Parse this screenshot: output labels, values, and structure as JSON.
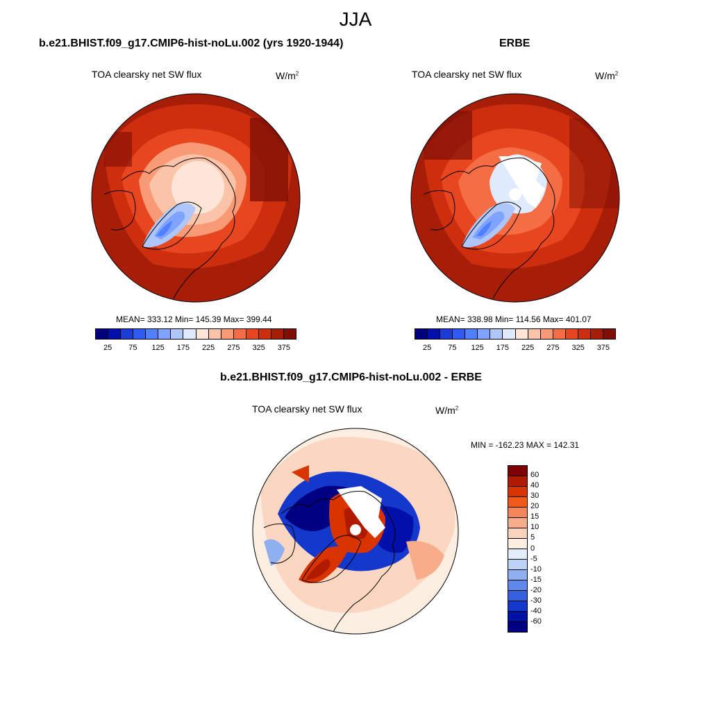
{
  "title": "JJA",
  "chart_data": [
    {
      "type": "heatmap",
      "projection": "north polar stereographic",
      "title": "b.e21.BHIST.f09_g17.CMIP6-hist-noLu.002 (yrs 1920-1944)",
      "variable": "TOA clearsky net SW flux",
      "units_base": "W/m",
      "units_exp": "2",
      "stats": {
        "mean": "333.12",
        "min": "145.39",
        "max": "399.44"
      },
      "stats_text": "MEAN= 333.12  Min= 145.39  Max= 399.44",
      "colorbar_ticks": [
        "25",
        "75",
        "125",
        "175",
        "225",
        "275",
        "325",
        "375"
      ],
      "colorbar_colors": [
        "#00007f",
        "#0010a8",
        "#1a3bd6",
        "#2f5bf0",
        "#4f80ff",
        "#7ea4ff",
        "#aec6fa",
        "#dfeafc",
        "#fde6d8",
        "#fbc4a8",
        "#f99a76",
        "#f56d44",
        "#e8461f",
        "#cc2e0e",
        "#a61d08",
        "#7f0f05"
      ]
    },
    {
      "type": "heatmap",
      "projection": "north polar stereographic",
      "title": "ERBE",
      "variable": "TOA clearsky net SW flux",
      "units_base": "W/m",
      "units_exp": "2",
      "stats": {
        "mean": "338.98",
        "min": "114.56",
        "max": "401.07"
      },
      "stats_text": "MEAN= 338.98  Min= 114.56  Max= 401.07",
      "colorbar_ticks": [
        "25",
        "75",
        "125",
        "175",
        "225",
        "275",
        "325",
        "375"
      ],
      "colorbar_colors": [
        "#00007f",
        "#0010a8",
        "#1a3bd6",
        "#2f5bf0",
        "#4f80ff",
        "#7ea4ff",
        "#aec6fa",
        "#dfeafc",
        "#fde6d8",
        "#fbc4a8",
        "#f99a76",
        "#f56d44",
        "#e8461f",
        "#cc2e0e",
        "#a61d08",
        "#7f0f05"
      ]
    },
    {
      "type": "heatmap",
      "projection": "north polar stereographic",
      "title": "b.e21.BHIST.f09_g17.CMIP6-hist-noLu.002 - ERBE",
      "variable": "TOA clearsky net SW flux",
      "units_base": "W/m",
      "units_exp": "2",
      "stats": {
        "min": "-162.23",
        "max": "142.31"
      },
      "stats_text": "MIN = -162.23 MAX = 142.31",
      "colorbar_ticks": [
        "60",
        "40",
        "30",
        "20",
        "15",
        "10",
        "5",
        "0",
        "-5",
        "-10",
        "-15",
        "-20",
        "-30",
        "-40",
        "-60"
      ],
      "colorbar_colors": [
        "#7f0000",
        "#b01a00",
        "#d93300",
        "#f05a1a",
        "#f5855a",
        "#f8ad8a",
        "#fbd3bc",
        "#fdeee2",
        "#e3eefb",
        "#bcd2f7",
        "#8fb0f0",
        "#5f88ea",
        "#3660e0",
        "#1538cc",
        "#0010a8",
        "#000080"
      ]
    }
  ]
}
